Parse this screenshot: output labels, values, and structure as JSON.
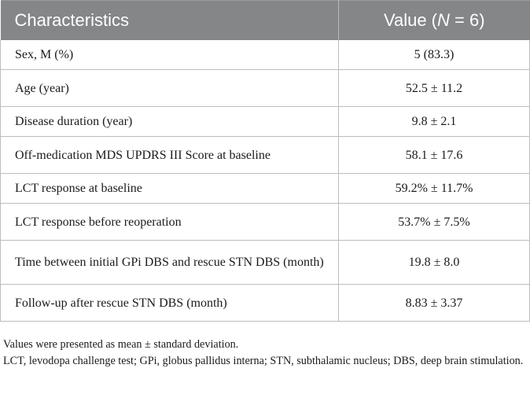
{
  "table": {
    "headers": {
      "characteristics": "Characteristics",
      "value_prefix": "Value (",
      "value_n": "N",
      "value_suffix": " = 6)"
    },
    "rows": [
      {
        "label": "Sex, M (%)",
        "value": "5 (83.3)"
      },
      {
        "label": "Age (year)",
        "value": "52.5 ± 11.2"
      },
      {
        "label": "Disease duration (year)",
        "value": "9.8 ± 2.1"
      },
      {
        "label": "Off-medication MDS UPDRS III Score at baseline",
        "value": "58.1 ± 17.6"
      },
      {
        "label": "LCT response at baseline",
        "value": "59.2% ± 11.7%"
      },
      {
        "label": "LCT response before reoperation",
        "value": "53.7% ± 7.5%"
      },
      {
        "label": "Time between initial GPi DBS and rescue STN DBS (month)",
        "value": "19.8 ± 8.0"
      },
      {
        "label": "Follow-up after rescue STN DBS (month)",
        "value": "8.83 ± 3.37"
      }
    ]
  },
  "notes": {
    "line1": "Values were presented as mean ± standard deviation.",
    "line2": "LCT, levodopa challenge test; GPi, globus pallidus interna; STN, subthalamic nucleus; DBS, deep brain stimulation."
  }
}
